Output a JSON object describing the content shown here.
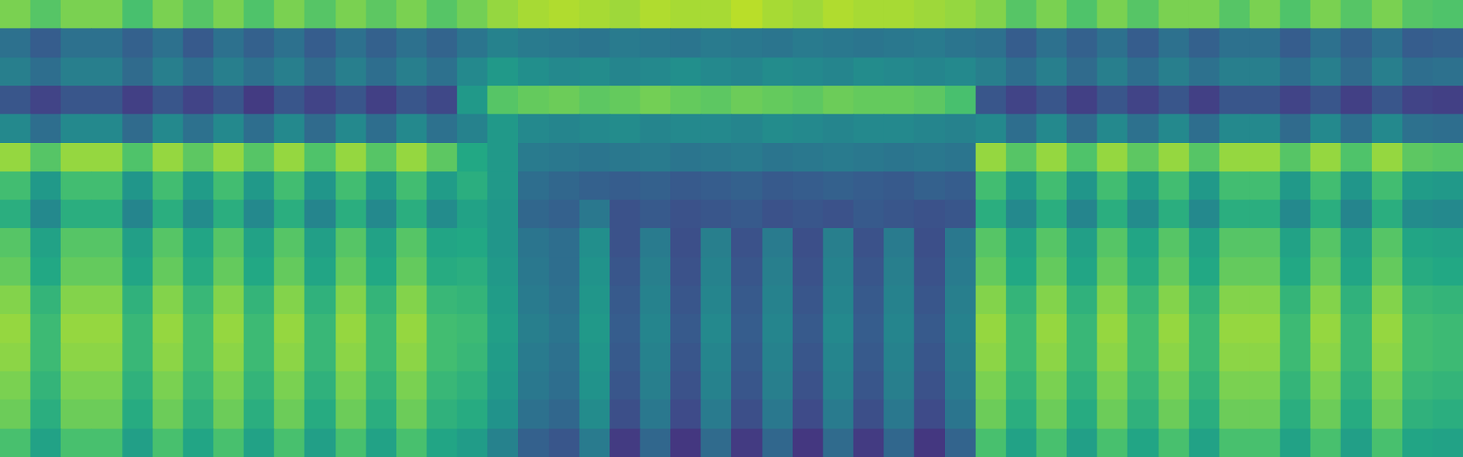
{
  "chart_data": {
    "type": "heatmap",
    "xlim": [
      0,
      48
    ],
    "ylim": [
      0,
      16
    ],
    "tick_labels": false,
    "zlim": [
      15,
      90
    ],
    "cells": [
      [
        75,
        70,
        75,
        75,
        68,
        75,
        70,
        75,
        69,
        75,
        70,
        75,
        71,
        75,
        70,
        74,
        78,
        80,
        81,
        80,
        79,
        81,
        80,
        80,
        82,
        80,
        79,
        81,
        80,
        80,
        79,
        78,
        76,
        70,
        75,
        69,
        75,
        70,
        75,
        75,
        70,
        75,
        69,
        75,
        70,
        75,
        70,
        69
      ],
      [
        43,
        37,
        43,
        43,
        38,
        43,
        36,
        43,
        38,
        43,
        37,
        43,
        38,
        43,
        39,
        44,
        48,
        46,
        45,
        44,
        46,
        45,
        44,
        46,
        45,
        44,
        46,
        45,
        44,
        45,
        46,
        44,
        43,
        37,
        43,
        38,
        43,
        37,
        43,
        38,
        43,
        43,
        37,
        43,
        38,
        43,
        37,
        38
      ],
      [
        47,
        42,
        47,
        47,
        41,
        47,
        42,
        47,
        43,
        47,
        41,
        47,
        42,
        47,
        43,
        50,
        55,
        52,
        50,
        51,
        49,
        50,
        52,
        50,
        49,
        51,
        50,
        49,
        51,
        50,
        49,
        50,
        47,
        42,
        47,
        41,
        47,
        42,
        47,
        43,
        47,
        47,
        42,
        47,
        41,
        47,
        42,
        43
      ],
      [
        35,
        30,
        35,
        35,
        29,
        35,
        30,
        35,
        28,
        35,
        30,
        35,
        29,
        35,
        31,
        55,
        70,
        72,
        73,
        71,
        72,
        74,
        72,
        71,
        73,
        72,
        71,
        73,
        72,
        72,
        71,
        68,
        35,
        30,
        35,
        29,
        35,
        30,
        35,
        29,
        35,
        35,
        30,
        35,
        29,
        35,
        30,
        29
      ],
      [
        50,
        42,
        50,
        50,
        41,
        50,
        43,
        50,
        42,
        50,
        41,
        50,
        42,
        50,
        43,
        48,
        55,
        50,
        49,
        50,
        51,
        49,
        50,
        50,
        49,
        51,
        50,
        49,
        50,
        50,
        49,
        48,
        50,
        42,
        50,
        41,
        50,
        43,
        50,
        42,
        50,
        50,
        41,
        50,
        42,
        50,
        43,
        42
      ],
      [
        78,
        70,
        78,
        78,
        69,
        78,
        71,
        78,
        70,
        78,
        69,
        78,
        70,
        78,
        71,
        60,
        55,
        46,
        45,
        44,
        45,
        46,
        44,
        45,
        46,
        44,
        45,
        46,
        45,
        44,
        45,
        44,
        78,
        70,
        78,
        69,
        78,
        71,
        78,
        70,
        78,
        78,
        70,
        78,
        69,
        78,
        71,
        70
      ],
      [
        67,
        55,
        67,
        67,
        54,
        67,
        56,
        67,
        55,
        67,
        54,
        67,
        55,
        67,
        56,
        62,
        55,
        42,
        40,
        38,
        37,
        38,
        36,
        37,
        38,
        36,
        37,
        38,
        37,
        36,
        38,
        37,
        67,
        55,
        67,
        54,
        67,
        56,
        67,
        55,
        67,
        67,
        55,
        67,
        54,
        67,
        56,
        55
      ],
      [
        62,
        50,
        62,
        62,
        49,
        62,
        51,
        62,
        50,
        62,
        49,
        62,
        50,
        62,
        51,
        58,
        54,
        40,
        38,
        45,
        34,
        36,
        34,
        35,
        36,
        34,
        35,
        34,
        36,
        35,
        34,
        35,
        62,
        50,
        62,
        49,
        62,
        51,
        62,
        50,
        62,
        62,
        50,
        62,
        49,
        62,
        51,
        50
      ],
      [
        70,
        58,
        70,
        70,
        57,
        70,
        59,
        70,
        58,
        70,
        57,
        70,
        58,
        70,
        59,
        60,
        54,
        44,
        42,
        52,
        34,
        46,
        33,
        47,
        34,
        46,
        33,
        47,
        34,
        46,
        33,
        45,
        70,
        58,
        70,
        57,
        70,
        59,
        70,
        58,
        70,
        70,
        58,
        70,
        57,
        70,
        59,
        58
      ],
      [
        72,
        60,
        72,
        72,
        59,
        72,
        61,
        72,
        60,
        72,
        59,
        72,
        60,
        72,
        61,
        62,
        55,
        45,
        42,
        53,
        35,
        47,
        34,
        48,
        35,
        47,
        34,
        48,
        35,
        47,
        34,
        46,
        72,
        60,
        72,
        59,
        72,
        61,
        72,
        60,
        72,
        72,
        60,
        72,
        59,
        72,
        61,
        60
      ],
      [
        76,
        64,
        76,
        76,
        63,
        76,
        65,
        76,
        64,
        76,
        63,
        76,
        64,
        76,
        65,
        64,
        56,
        46,
        43,
        54,
        36,
        48,
        35,
        49,
        36,
        48,
        35,
        49,
        36,
        48,
        35,
        47,
        76,
        64,
        76,
        63,
        76,
        65,
        76,
        64,
        76,
        76,
        64,
        76,
        63,
        76,
        65,
        64
      ],
      [
        78,
        66,
        78,
        78,
        65,
        78,
        67,
        78,
        66,
        78,
        65,
        78,
        66,
        78,
        67,
        66,
        57,
        47,
        44,
        55,
        37,
        49,
        36,
        50,
        37,
        49,
        36,
        50,
        37,
        49,
        36,
        48,
        78,
        66,
        78,
        65,
        78,
        67,
        78,
        66,
        78,
        78,
        66,
        78,
        65,
        78,
        67,
        66
      ],
      [
        77,
        66,
        77,
        77,
        65,
        77,
        67,
        77,
        66,
        77,
        65,
        77,
        66,
        77,
        67,
        65,
        56,
        46,
        43,
        54,
        36,
        48,
        35,
        49,
        36,
        48,
        35,
        49,
        36,
        48,
        35,
        47,
        77,
        66,
        77,
        65,
        77,
        67,
        77,
        66,
        77,
        77,
        66,
        77,
        65,
        77,
        67,
        66
      ],
      [
        75,
        64,
        75,
        75,
        63,
        75,
        65,
        75,
        64,
        75,
        63,
        75,
        64,
        75,
        65,
        63,
        55,
        45,
        42,
        53,
        35,
        47,
        34,
        48,
        35,
        47,
        34,
        48,
        35,
        47,
        34,
        46,
        75,
        64,
        75,
        63,
        75,
        65,
        75,
        64,
        75,
        75,
        64,
        75,
        63,
        75,
        65,
        64
      ],
      [
        73,
        62,
        73,
        73,
        61,
        73,
        63,
        73,
        62,
        73,
        61,
        73,
        62,
        73,
        63,
        61,
        53,
        43,
        40,
        51,
        33,
        45,
        32,
        46,
        33,
        45,
        32,
        46,
        33,
        45,
        32,
        44,
        73,
        62,
        73,
        61,
        73,
        63,
        73,
        62,
        73,
        73,
        62,
        73,
        61,
        73,
        63,
        62
      ],
      [
        68,
        58,
        68,
        68,
        57,
        68,
        59,
        68,
        58,
        68,
        57,
        68,
        58,
        68,
        59,
        56,
        48,
        38,
        35,
        46,
        28,
        40,
        27,
        41,
        28,
        40,
        27,
        41,
        28,
        40,
        27,
        39,
        68,
        58,
        68,
        57,
        68,
        59,
        68,
        58,
        68,
        68,
        58,
        68,
        57,
        68,
        59,
        58
      ]
    ]
  }
}
